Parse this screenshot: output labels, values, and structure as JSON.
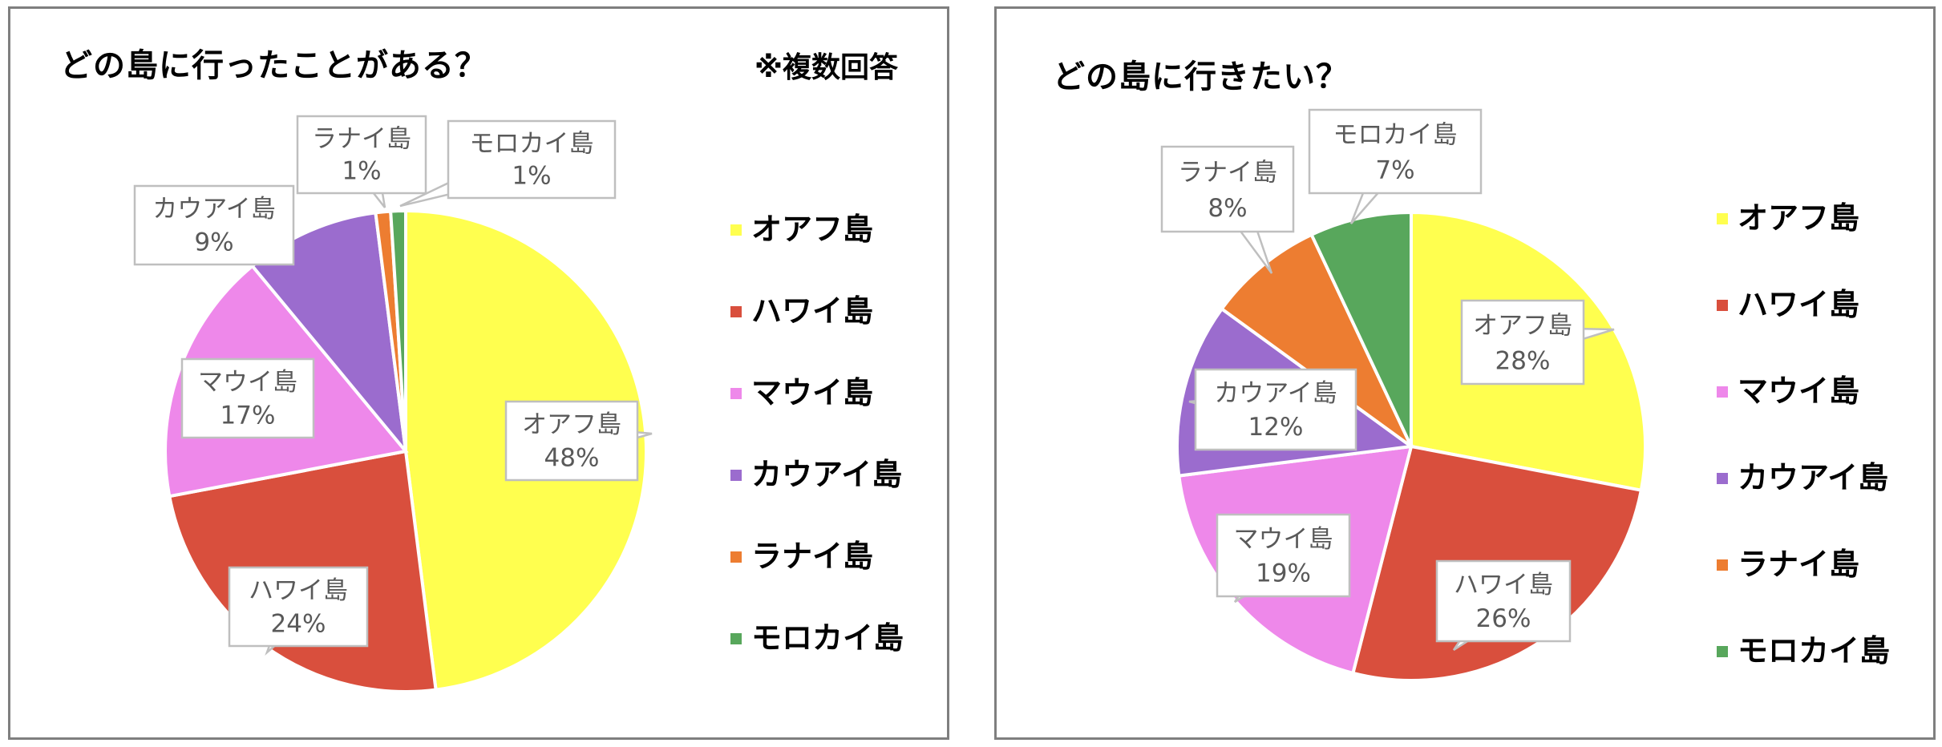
{
  "chart_data": [
    {
      "type": "pie",
      "title": "どの島に行ったことがある？",
      "note": "※複数回答",
      "categories": [
        "オアフ島",
        "ハワイ島",
        "マウイ島",
        "カウアイ島",
        "ラナイ島",
        "モロカイ島"
      ],
      "values": [
        48,
        24,
        17,
        9,
        1,
        1
      ],
      "data_labels": [
        "48%",
        "24%",
        "17%",
        "9%",
        "1%",
        "1%"
      ],
      "legend": [
        "オアフ島",
        "ハワイ島",
        "マウイ島",
        "カウアイ島",
        "ラナイ島",
        "モロカイ島"
      ],
      "legend_position": "right",
      "colors": [
        "#ffff4f",
        "#d94f3d",
        "#ee88ea",
        "#9b6cce",
        "#ed7d31",
        "#58a75c"
      ]
    },
    {
      "type": "pie",
      "title": "どの島に行きたい？",
      "categories": [
        "オアフ島",
        "ハワイ島",
        "マウイ島",
        "カウアイ島",
        "ラナイ島",
        "モロカイ島"
      ],
      "values": [
        28,
        26,
        19,
        12,
        8,
        7
      ],
      "data_labels": [
        "28%",
        "26%",
        "19%",
        "12%",
        "8%",
        "7%"
      ],
      "legend": [
        "オアフ島",
        "ハワイ島",
        "マウイ島",
        "カウアイ島",
        "ラナイ島",
        "モロカイ島"
      ],
      "legend_position": "right",
      "colors": [
        "#ffff4f",
        "#d94f3d",
        "#ee88ea",
        "#9b6cce",
        "#ed7d31",
        "#58a75c"
      ]
    }
  ]
}
